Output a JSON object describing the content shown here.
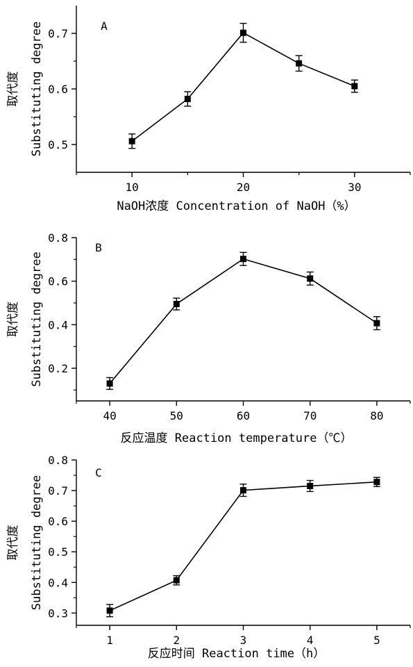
{
  "chart_data": [
    {
      "type": "line",
      "panel_label": "A",
      "xlabel": "NaOH浓度 Concentration of NaOH（%）",
      "ylabel_cn": "取代度",
      "ylabel_en": "Substituting degree",
      "xlim": [
        5,
        35
      ],
      "ylim": [
        0.45,
        0.75
      ],
      "xticks": [
        10,
        20,
        30
      ],
      "xticks_minor": [
        15,
        25
      ],
      "yticks": [
        0.5,
        0.6,
        0.7
      ],
      "ytick_labels": [
        "0.5",
        "0.6",
        "0.7"
      ],
      "xtick_labels": [
        "10",
        "20",
        "30"
      ],
      "grid": false,
      "series": [
        {
          "x": [
            10,
            15,
            20,
            25,
            30
          ],
          "values": [
            0.506,
            0.582,
            0.701,
            0.646,
            0.605
          ],
          "errors": [
            0.013,
            0.013,
            0.017,
            0.014,
            0.011
          ]
        }
      ]
    },
    {
      "type": "line",
      "panel_label": "B",
      "xlabel": "反应温度 Reaction temperature（℃）",
      "ylabel_cn": "取代度",
      "ylabel_en": "Substituting degree",
      "xlim": [
        35,
        85
      ],
      "ylim": [
        0.05,
        0.8
      ],
      "xticks": [
        40,
        50,
        60,
        70,
        80
      ],
      "yticks": [
        0.2,
        0.4,
        0.6,
        0.8
      ],
      "ytick_labels": [
        "0.2",
        "0.4",
        "0.6",
        "0.8"
      ],
      "xtick_labels": [
        "40",
        "50",
        "60",
        "70",
        "80"
      ],
      "grid": false,
      "series": [
        {
          "x": [
            40,
            50,
            60,
            70,
            80
          ],
          "values": [
            0.13,
            0.495,
            0.702,
            0.612,
            0.407
          ],
          "errors": [
            0.027,
            0.027,
            0.03,
            0.03,
            0.03
          ]
        }
      ]
    },
    {
      "type": "line",
      "panel_label": "C",
      "xlabel": "反应时间 Reaction time（h）",
      "ylabel_cn": "取代度",
      "ylabel_en": "Substituting degree",
      "xlim": [
        0.5,
        5.5
      ],
      "ylim": [
        0.26,
        0.8
      ],
      "xticks": [
        1,
        2,
        3,
        4,
        5
      ],
      "yticks": [
        0.3,
        0.4,
        0.5,
        0.6,
        0.7,
        0.8
      ],
      "ytick_labels": [
        "0.3",
        "0.4",
        "0.5",
        "0.6",
        "0.7",
        "0.8"
      ],
      "xtick_labels": [
        "1",
        "2",
        "3",
        "4",
        "5"
      ],
      "grid": false,
      "series": [
        {
          "x": [
            1,
            2,
            3,
            4,
            5
          ],
          "values": [
            0.308,
            0.407,
            0.701,
            0.715,
            0.728
          ],
          "errors": [
            0.02,
            0.015,
            0.02,
            0.018,
            0.015
          ]
        }
      ]
    }
  ]
}
